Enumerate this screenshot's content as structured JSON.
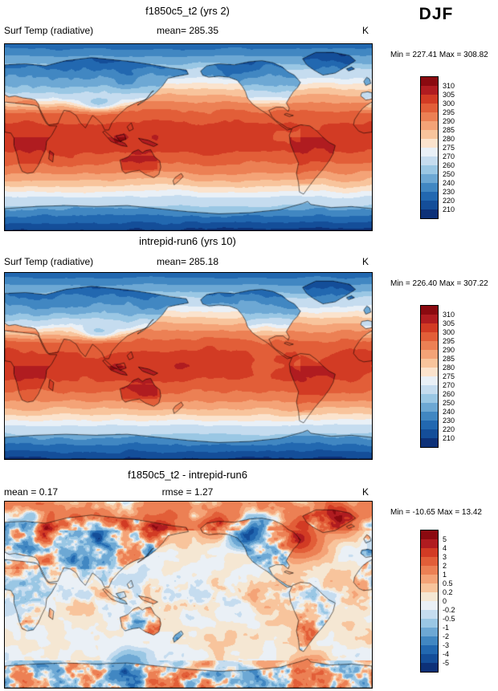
{
  "season_label": "DJF",
  "panels": [
    {
      "title": "f1850c5_t2 (yrs 2)",
      "header_left": "Surf Temp (radiative)",
      "header_center": "mean= 285.35",
      "units": "K",
      "minmax": "Min = 227.41 Max = 308.82",
      "colorbar": {
        "ticks": [
          "310",
          "305",
          "300",
          "295",
          "290",
          "285",
          "280",
          "275",
          "270",
          "260",
          "250",
          "240",
          "230",
          "220",
          "210"
        ],
        "colors": [
          "#8b0a10",
          "#b01c20",
          "#d23b24",
          "#e25e38",
          "#ec8054",
          "#f4a377",
          "#f8c49c",
          "#fbe3cd",
          "#e9f0f7",
          "#c5dcef",
          "#9ac7e4",
          "#6da8d4",
          "#4187c2",
          "#2268b0",
          "#144e99",
          "#0d3178"
        ]
      }
    },
    {
      "title": "intrepid-run6 (yrs 10)",
      "header_left": "Surf Temp (radiative)",
      "header_center": "mean= 285.18",
      "units": "K",
      "minmax": "Min = 226.40 Max = 307.22",
      "colorbar": {
        "ticks": [
          "310",
          "305",
          "300",
          "295",
          "290",
          "285",
          "280",
          "275",
          "270",
          "260",
          "250",
          "240",
          "230",
          "220",
          "210"
        ],
        "colors": [
          "#8b0a10",
          "#b01c20",
          "#d23b24",
          "#e25e38",
          "#ec8054",
          "#f4a377",
          "#f8c49c",
          "#fbe3cd",
          "#e9f0f7",
          "#c5dcef",
          "#9ac7e4",
          "#6da8d4",
          "#4187c2",
          "#2268b0",
          "#144e99",
          "#0d3178"
        ]
      }
    },
    {
      "title": "f1850c5_t2 - intrepid-run6",
      "header_left": "mean =   0.17",
      "header_center": "rmse =   1.27",
      "units": "K",
      "minmax": "Min = -10.65 Max =  13.42",
      "colorbar": {
        "ticks": [
          "5",
          "4",
          "3",
          "2",
          "1",
          "0.5",
          "0.2",
          "0",
          "-0.2",
          "-0.5",
          "-1",
          "-2",
          "-3",
          "-4",
          "-5"
        ],
        "colors": [
          "#8b0a10",
          "#b01c20",
          "#d23b24",
          "#e25e38",
          "#ec8054",
          "#f4a377",
          "#f8c49c",
          "#f5e7d3",
          "#eaf0f6",
          "#c5dcef",
          "#9ac7e4",
          "#6da8d4",
          "#4187c2",
          "#2268b0",
          "#144e99",
          "#0d3178"
        ]
      }
    }
  ],
  "chart_data": [
    {
      "type": "heatmap",
      "map_type": "global_filled_contour",
      "title": "f1850c5_t2 (yrs 2)",
      "season": "DJF",
      "variable": "Surf Temp (radiative)",
      "units": "K",
      "mean": 285.35,
      "min": 227.41,
      "max": 308.82,
      "contour_levels": [
        210,
        220,
        230,
        240,
        250,
        260,
        270,
        275,
        280,
        285,
        290,
        295,
        300,
        305,
        310
      ],
      "projection": "equirectangular 0-360E, 90S-90N",
      "colorbar_position": "right"
    },
    {
      "type": "heatmap",
      "map_type": "global_filled_contour",
      "title": "intrepid-run6 (yrs 10)",
      "season": "DJF",
      "variable": "Surf Temp (radiative)",
      "units": "K",
      "mean": 285.18,
      "min": 226.4,
      "max": 307.22,
      "contour_levels": [
        210,
        220,
        230,
        240,
        250,
        260,
        270,
        275,
        280,
        285,
        290,
        295,
        300,
        305,
        310
      ],
      "projection": "equirectangular 0-360E, 90S-90N",
      "colorbar_position": "right"
    },
    {
      "type": "heatmap",
      "map_type": "global_difference_map",
      "title": "f1850c5_t2 - intrepid-run6",
      "season": "DJF",
      "variable": "Surf Temp (radiative) difference",
      "units": "K",
      "mean": 0.17,
      "rmse": 1.27,
      "min": -10.65,
      "max": 13.42,
      "contour_levels": [
        -5,
        -4,
        -3,
        -2,
        -1,
        -0.5,
        -0.2,
        0,
        0.2,
        0.5,
        1,
        2,
        3,
        4,
        5
      ],
      "projection": "equirectangular 0-360E, 90S-90N",
      "colorbar_position": "right"
    }
  ]
}
